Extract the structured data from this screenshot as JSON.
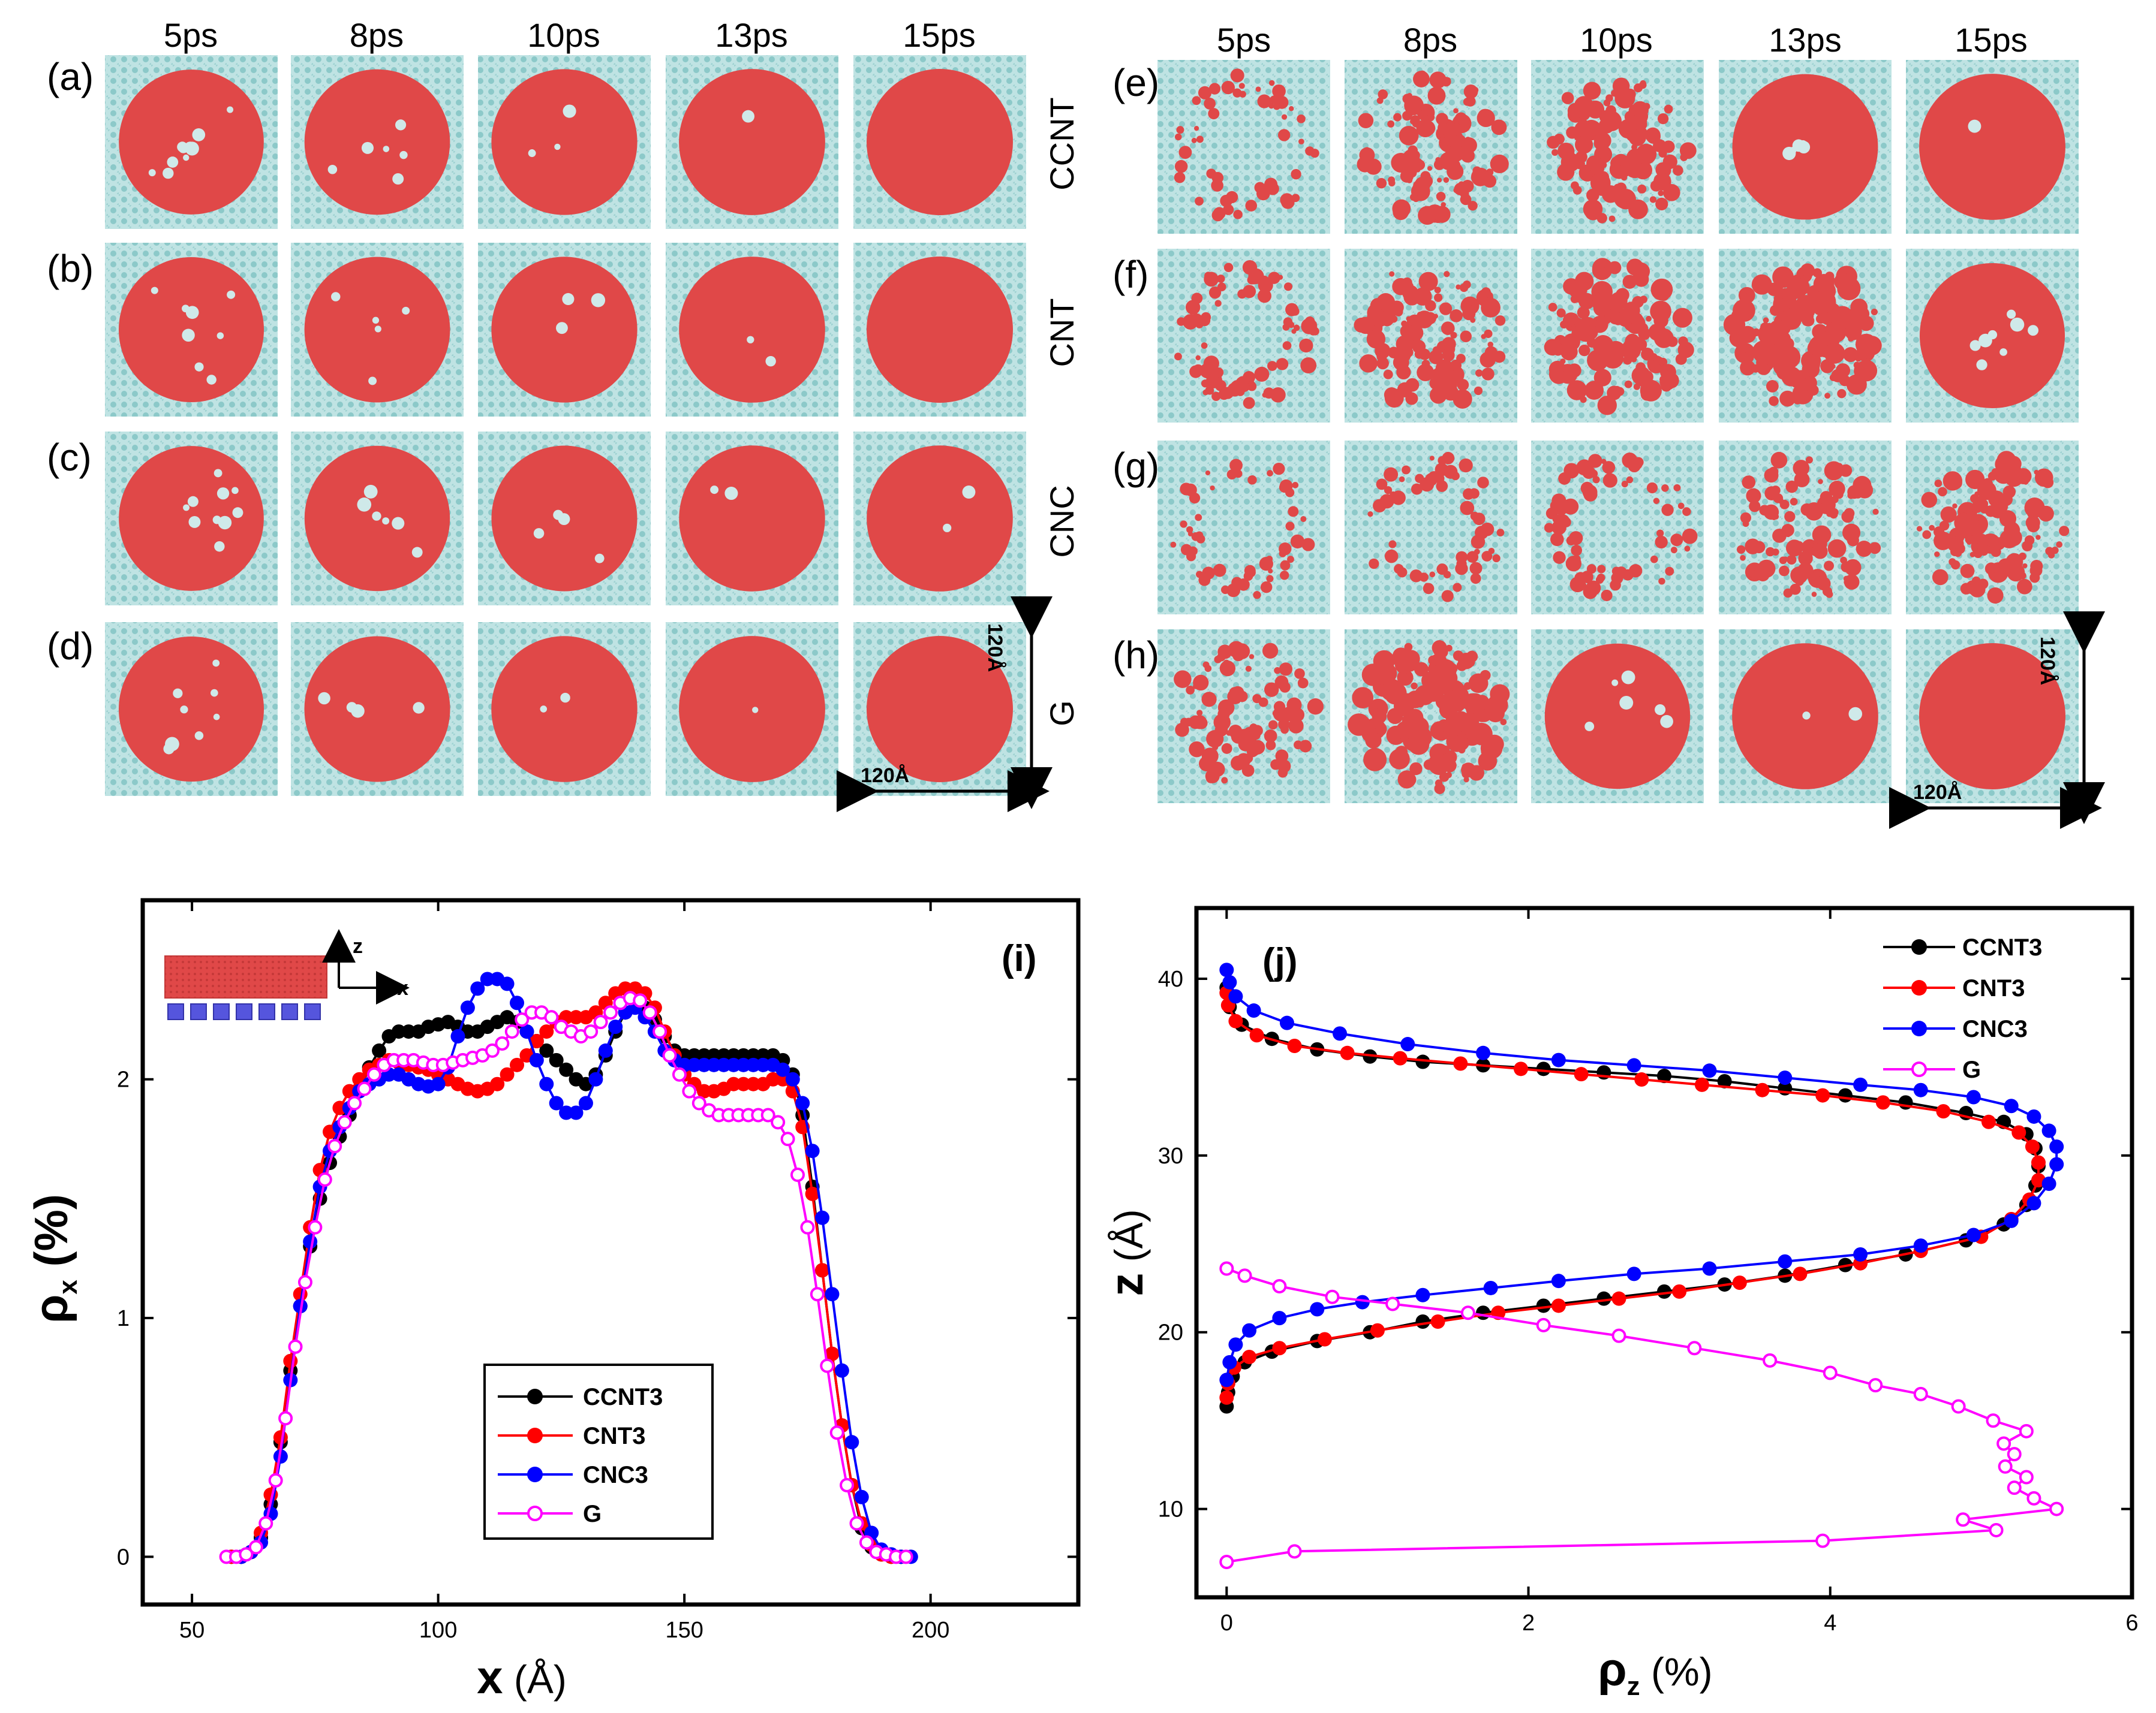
{
  "figure": {
    "time_labels": [
      "5ps",
      "8ps",
      "10ps",
      "13ps",
      "15ps"
    ],
    "left_row_labels": [
      "(a)",
      "(b)",
      "(c)",
      "(d)"
    ],
    "right_row_labels": [
      "(e)",
      "(f)",
      "(g)",
      "(h)"
    ],
    "row_names": [
      "CCNT",
      "CNT",
      "CNC",
      "G"
    ],
    "scale_label": "120Å",
    "colors": {
      "substrate": "#a9d8d8",
      "droplet": "#e04848"
    },
    "coverage": {
      "a": [
        0.88,
        0.93,
        0.96,
        0.99,
        1.0
      ],
      "b": [
        0.9,
        0.94,
        0.96,
        0.98,
        1.0
      ],
      "c": [
        0.88,
        0.92,
        0.95,
        0.97,
        0.98
      ],
      "d": [
        0.9,
        0.95,
        0.97,
        0.99,
        1.0
      ],
      "e": [
        0.15,
        0.55,
        0.62,
        0.94,
        0.99
      ],
      "f": [
        0.3,
        0.55,
        0.7,
        0.82,
        0.9
      ],
      "g": [
        0.15,
        0.18,
        0.3,
        0.5,
        0.6
      ],
      "h": [
        0.42,
        0.8,
        0.92,
        0.98,
        1.0
      ]
    }
  },
  "chart_data": [
    {
      "type": "line",
      "panel_label": "(i)",
      "xlabel_symbol": "x",
      "xlabel_unit": " (Å)",
      "ylabel_symbol": "ρ",
      "ylabel_sub": "x",
      "ylabel_unit": " (%)",
      "xlim": [
        40,
        230
      ],
      "ylim": [
        -0.2,
        2.75
      ],
      "xticks": [
        50,
        100,
        150,
        200
      ],
      "yticks": [
        0,
        1,
        2
      ],
      "inset_axes": {
        "z": "z",
        "x": "x"
      },
      "legend_position": "bottom-center",
      "series": [
        {
          "name": "CCNT3",
          "color": "#000000",
          "marker": "filled",
          "x": [
            58,
            60,
            62,
            64,
            66,
            68,
            70,
            72,
            74,
            76,
            78,
            80,
            82,
            84,
            86,
            88,
            90,
            92,
            94,
            96,
            98,
            100,
            102,
            104,
            106,
            108,
            110,
            112,
            114,
            116,
            118,
            120,
            122,
            124,
            126,
            128,
            130,
            132,
            134,
            136,
            138,
            140,
            142,
            144,
            146,
            148,
            150,
            152,
            154,
            156,
            158,
            160,
            162,
            164,
            166,
            168,
            170,
            172,
            174,
            176,
            178,
            180,
            182,
            184,
            186,
            188,
            190,
            192,
            194
          ],
          "y": [
            0,
            0,
            0.02,
            0.08,
            0.22,
            0.48,
            0.78,
            1.05,
            1.3,
            1.5,
            1.65,
            1.76,
            1.85,
            1.95,
            2.05,
            2.12,
            2.18,
            2.2,
            2.2,
            2.2,
            2.22,
            2.23,
            2.24,
            2.22,
            2.2,
            2.2,
            2.22,
            2.24,
            2.26,
            2.24,
            2.2,
            2.16,
            2.12,
            2.08,
            2.04,
            2.0,
            1.98,
            2.02,
            2.1,
            2.2,
            2.28,
            2.32,
            2.3,
            2.25,
            2.18,
            2.12,
            2.1,
            2.1,
            2.1,
            2.1,
            2.1,
            2.1,
            2.1,
            2.1,
            2.1,
            2.1,
            2.08,
            2.02,
            1.85,
            1.55,
            1.2,
            0.85,
            0.55,
            0.3,
            0.12,
            0.04,
            0.01,
            0,
            0
          ]
        },
        {
          "name": "CNT3",
          "color": "#ff0000",
          "marker": "filled",
          "x": [
            58,
            60,
            62,
            64,
            66,
            68,
            70,
            72,
            74,
            76,
            78,
            80,
            82,
            84,
            86,
            88,
            90,
            92,
            94,
            96,
            98,
            100,
            102,
            104,
            106,
            108,
            110,
            112,
            114,
            116,
            118,
            120,
            122,
            124,
            126,
            128,
            130,
            132,
            134,
            136,
            138,
            140,
            142,
            144,
            146,
            148,
            150,
            152,
            154,
            156,
            158,
            160,
            162,
            164,
            166,
            168,
            170,
            172,
            174,
            176,
            178,
            180,
            182,
            184,
            186,
            188,
            190,
            192,
            194
          ],
          "y": [
            0,
            0,
            0.02,
            0.1,
            0.26,
            0.5,
            0.82,
            1.1,
            1.38,
            1.62,
            1.78,
            1.88,
            1.95,
            2.0,
            2.04,
            2.06,
            2.08,
            2.07,
            2.06,
            2.05,
            2.04,
            2.02,
            2.0,
            1.98,
            1.96,
            1.95,
            1.96,
            1.98,
            2.02,
            2.06,
            2.1,
            2.16,
            2.2,
            2.24,
            2.26,
            2.26,
            2.26,
            2.28,
            2.32,
            2.36,
            2.38,
            2.38,
            2.36,
            2.3,
            2.2,
            2.1,
            2.02,
            1.98,
            1.95,
            1.95,
            1.96,
            1.98,
            1.98,
            1.98,
            1.98,
            2.0,
            2.0,
            1.95,
            1.8,
            1.52,
            1.2,
            0.85,
            0.55,
            0.3,
            0.14,
            0.05,
            0.01,
            0,
            0
          ]
        },
        {
          "name": "CNC3",
          "color": "#0000ff",
          "marker": "filled",
          "x": [
            60,
            62,
            64,
            66,
            68,
            70,
            72,
            74,
            76,
            78,
            80,
            82,
            84,
            86,
            88,
            90,
            92,
            94,
            96,
            98,
            100,
            102,
            104,
            106,
            108,
            110,
            112,
            114,
            116,
            118,
            120,
            122,
            124,
            126,
            128,
            130,
            132,
            134,
            136,
            138,
            140,
            142,
            144,
            146,
            148,
            150,
            152,
            154,
            156,
            158,
            160,
            162,
            164,
            166,
            168,
            170,
            172,
            174,
            176,
            178,
            180,
            182,
            184,
            186,
            188,
            190,
            192,
            194,
            196
          ],
          "y": [
            0,
            0.02,
            0.06,
            0.18,
            0.42,
            0.74,
            1.05,
            1.32,
            1.55,
            1.7,
            1.8,
            1.88,
            1.95,
            1.98,
            2.0,
            2.02,
            2.02,
            2.0,
            1.98,
            1.97,
            1.98,
            2.05,
            2.18,
            2.3,
            2.38,
            2.42,
            2.42,
            2.4,
            2.32,
            2.2,
            2.08,
            1.98,
            1.9,
            1.86,
            1.86,
            1.9,
            2.0,
            2.12,
            2.22,
            2.28,
            2.3,
            2.26,
            2.2,
            2.12,
            2.08,
            2.06,
            2.06,
            2.06,
            2.06,
            2.06,
            2.06,
            2.06,
            2.06,
            2.06,
            2.06,
            2.04,
            2.0,
            1.9,
            1.7,
            1.42,
            1.1,
            0.78,
            0.48,
            0.25,
            0.1,
            0.03,
            0.01,
            0,
            0
          ]
        },
        {
          "name": "G",
          "color": "#ff00ff",
          "marker": "open",
          "x": [
            57,
            59,
            61,
            63,
            65,
            67,
            69,
            71,
            73,
            75,
            77,
            79,
            81,
            83,
            85,
            87,
            89,
            91,
            93,
            95,
            97,
            99,
            101,
            103,
            105,
            107,
            109,
            111,
            113,
            115,
            117,
            119,
            121,
            123,
            125,
            127,
            129,
            131,
            133,
            135,
            137,
            139,
            141,
            143,
            145,
            147,
            149,
            151,
            153,
            155,
            157,
            159,
            161,
            163,
            165,
            167,
            169,
            171,
            173,
            175,
            177,
            179,
            181,
            183,
            185,
            187,
            189,
            191,
            193,
            195
          ],
          "y": [
            0,
            0,
            0.01,
            0.04,
            0.14,
            0.32,
            0.58,
            0.88,
            1.15,
            1.38,
            1.58,
            1.72,
            1.82,
            1.9,
            1.96,
            2.02,
            2.06,
            2.08,
            2.08,
            2.08,
            2.07,
            2.06,
            2.06,
            2.07,
            2.08,
            2.09,
            2.1,
            2.12,
            2.15,
            2.2,
            2.25,
            2.28,
            2.28,
            2.26,
            2.22,
            2.2,
            2.18,
            2.2,
            2.24,
            2.28,
            2.32,
            2.34,
            2.33,
            2.28,
            2.2,
            2.1,
            2.02,
            1.95,
            1.9,
            1.87,
            1.85,
            1.85,
            1.85,
            1.85,
            1.85,
            1.85,
            1.82,
            1.75,
            1.6,
            1.38,
            1.1,
            0.8,
            0.52,
            0.3,
            0.14,
            0.06,
            0.02,
            0.01,
            0,
            0
          ]
        }
      ]
    },
    {
      "type": "line",
      "panel_label": "(j)",
      "xlabel_symbol": "ρ",
      "xlabel_sub": "z",
      "xlabel_unit": " (%)",
      "ylabel_symbol": "z",
      "ylabel_unit": " (Å)",
      "xlim": [
        -0.2,
        6
      ],
      "ylim": [
        5,
        44
      ],
      "xticks": [
        0,
        2,
        4,
        6
      ],
      "yticks": [
        10,
        20,
        30,
        40
      ],
      "legend_position": "top-right",
      "series": [
        {
          "name": "CCNT3",
          "color": "#000000",
          "marker": "filled",
          "x": [
            0.0,
            0.01,
            0.04,
            0.12,
            0.3,
            0.6,
            0.95,
            1.3,
            1.7,
            2.1,
            2.5,
            2.9,
            3.3,
            3.7,
            4.1,
            4.5,
            4.9,
            5.15,
            5.3,
            5.36,
            5.38,
            5.36,
            5.3,
            5.15,
            4.9,
            4.5,
            4.1,
            3.7,
            3.3,
            2.9,
            2.5,
            2.1,
            1.7,
            1.3,
            0.95,
            0.6,
            0.3,
            0.1,
            0.02,
            0.0
          ],
          "y": [
            15.8,
            16.6,
            17.5,
            18.3,
            18.9,
            19.5,
            20.0,
            20.6,
            21.1,
            21.5,
            21.9,
            22.3,
            22.7,
            23.2,
            23.8,
            24.4,
            25.2,
            26.1,
            27.2,
            28.3,
            29.4,
            30.4,
            31.2,
            31.9,
            32.4,
            33.0,
            33.4,
            33.8,
            34.2,
            34.5,
            34.7,
            34.9,
            35.1,
            35.3,
            35.6,
            36.0,
            36.6,
            37.4,
            38.4,
            39.5
          ]
        },
        {
          "name": "CNT3",
          "color": "#ff0000",
          "marker": "filled",
          "x": [
            0.0,
            0.01,
            0.05,
            0.15,
            0.35,
            0.65,
            1.0,
            1.4,
            1.8,
            2.2,
            2.6,
            3.0,
            3.4,
            3.8,
            4.2,
            4.6,
            5.0,
            5.2,
            5.32,
            5.38,
            5.38,
            5.34,
            5.25,
            5.05,
            4.75,
            4.35,
            3.95,
            3.55,
            3.15,
            2.75,
            2.35,
            1.95,
            1.55,
            1.15,
            0.8,
            0.45,
            0.2,
            0.06,
            0.01,
            0.0
          ],
          "y": [
            16.3,
            17.1,
            18.0,
            18.6,
            19.1,
            19.6,
            20.1,
            20.6,
            21.1,
            21.5,
            21.9,
            22.3,
            22.8,
            23.3,
            23.9,
            24.6,
            25.4,
            26.4,
            27.5,
            28.6,
            29.6,
            30.5,
            31.3,
            31.9,
            32.5,
            33.0,
            33.4,
            33.7,
            34.0,
            34.3,
            34.6,
            34.9,
            35.2,
            35.5,
            35.8,
            36.2,
            36.8,
            37.6,
            38.5,
            39.2
          ]
        },
        {
          "name": "CNC3",
          "color": "#0000ff",
          "marker": "filled",
          "x": [
            0.0,
            0.02,
            0.06,
            0.15,
            0.35,
            0.6,
            0.9,
            1.3,
            1.75,
            2.2,
            2.7,
            3.2,
            3.7,
            4.2,
            4.6,
            4.95,
            5.2,
            5.35,
            5.45,
            5.5,
            5.5,
            5.45,
            5.35,
            5.2,
            4.95,
            4.6,
            4.2,
            3.7,
            3.2,
            2.7,
            2.2,
            1.7,
            1.2,
            0.75,
            0.4,
            0.18,
            0.06,
            0.02,
            0.0
          ],
          "y": [
            17.3,
            18.3,
            19.3,
            20.1,
            20.8,
            21.3,
            21.7,
            22.1,
            22.5,
            22.9,
            23.3,
            23.6,
            24.0,
            24.4,
            24.9,
            25.5,
            26.3,
            27.3,
            28.4,
            29.5,
            30.5,
            31.4,
            32.2,
            32.8,
            33.3,
            33.7,
            34.0,
            34.4,
            34.8,
            35.1,
            35.4,
            35.8,
            36.3,
            36.9,
            37.5,
            38.2,
            39.0,
            39.8,
            40.5
          ]
        },
        {
          "name": "G",
          "color": "#ff00ff",
          "marker": "open",
          "x": [
            0.0,
            0.45,
            3.95,
            5.1,
            4.88,
            5.5,
            5.35,
            5.22,
            5.3,
            5.16,
            5.22,
            5.15,
            5.3,
            5.08,
            4.85,
            4.6,
            4.3,
            4.0,
            3.6,
            3.1,
            2.6,
            2.1,
            1.6,
            1.1,
            0.7,
            0.35,
            0.12,
            0.0
          ],
          "y": [
            7.0,
            7.6,
            8.2,
            8.8,
            9.4,
            10.0,
            10.6,
            11.2,
            11.8,
            12.4,
            13.1,
            13.7,
            14.4,
            15.0,
            15.8,
            16.5,
            17.0,
            17.7,
            18.4,
            19.1,
            19.8,
            20.4,
            21.1,
            21.6,
            22.0,
            22.6,
            23.2,
            23.6
          ]
        }
      ]
    }
  ]
}
